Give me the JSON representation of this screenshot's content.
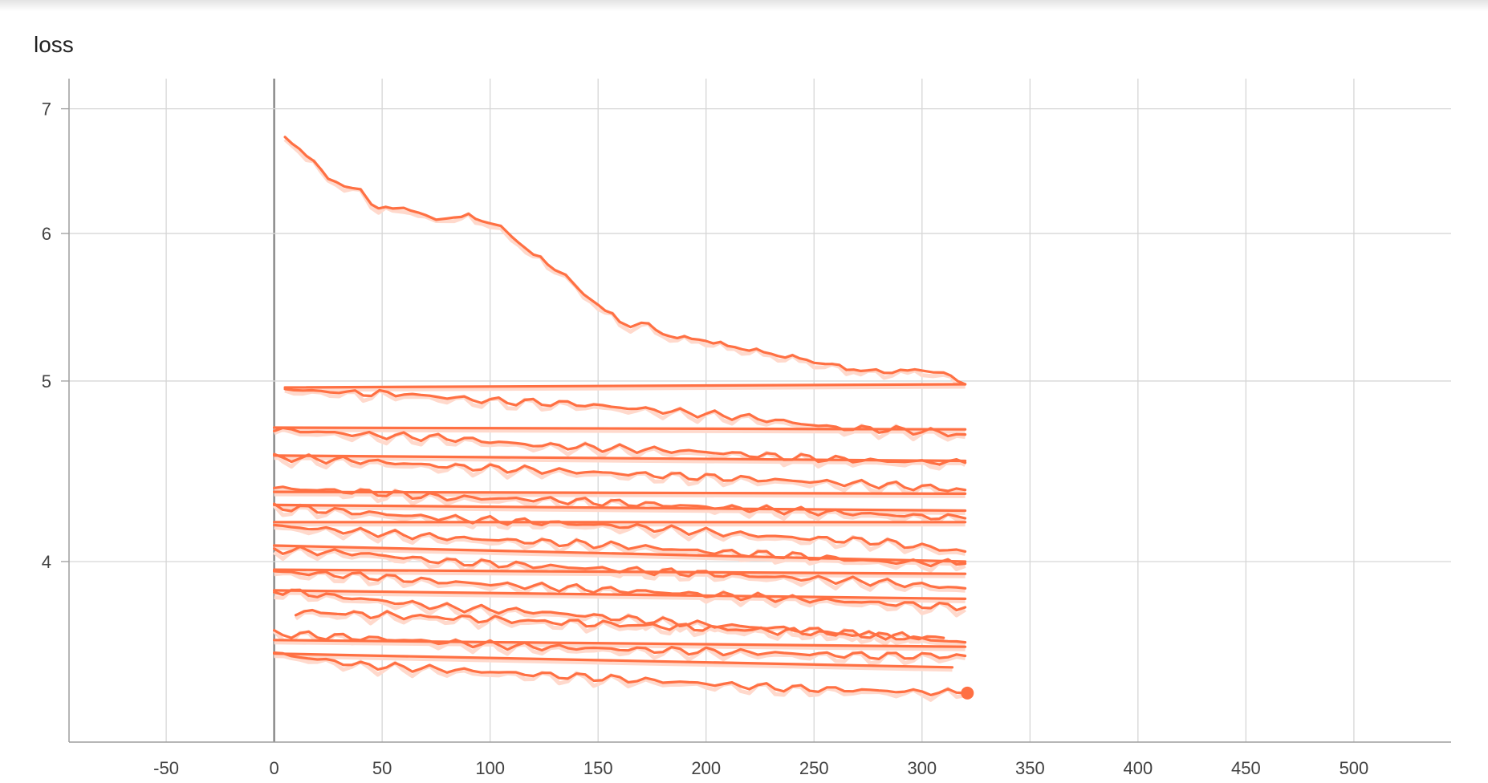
{
  "chart_data": {
    "type": "line",
    "title": "loss",
    "xlabel": "",
    "ylabel": "",
    "xlim": [
      -95,
      545
    ],
    "ylim": [
      3.2,
      7.18
    ],
    "y_scale": "log",
    "x_ticks": [
      -50,
      0,
      50,
      100,
      150,
      200,
      250,
      300,
      350,
      400,
      450,
      500
    ],
    "y_ticks": [
      4,
      5,
      6,
      7
    ],
    "grid": true,
    "legend": "none",
    "colors": {
      "line": "#ff7043",
      "line_raw": "#ffd9cc",
      "grid": "#d6d6d6",
      "axis": "#9e9e9e"
    },
    "series": [
      {
        "x": [
          5,
          15,
          25,
          40,
          45,
          55,
          60,
          70,
          75,
          80,
          90,
          100,
          105,
          110,
          120,
          130,
          135,
          140,
          150,
          160,
          165,
          170,
          180,
          190,
          200,
          210,
          220,
          230,
          240,
          250,
          255,
          265,
          275,
          290,
          300,
          305,
          310,
          320
        ],
        "y": [
          6.75,
          6.62,
          6.42,
          6.32,
          6.22,
          6.18,
          6.2,
          6.14,
          6.1,
          6.12,
          6.13,
          6.08,
          6.05,
          5.98,
          5.85,
          5.74,
          5.7,
          5.6,
          5.5,
          5.38,
          5.36,
          5.38,
          5.3,
          5.27,
          5.26,
          5.22,
          5.2,
          5.17,
          5.15,
          5.12,
          5.11,
          5.08,
          5.06,
          5.06,
          5.07,
          5.06,
          5.05,
          4.98
        ]
      },
      {
        "x": [
          5,
          30,
          60,
          100,
          140,
          180,
          220,
          260,
          300,
          320
        ],
        "y": [
          4.95,
          4.93,
          4.92,
          4.88,
          4.86,
          4.82,
          4.78,
          4.72,
          4.7,
          4.68
        ]
      },
      {
        "x": [
          5,
          320
        ],
        "y": [
          4.96,
          4.98
        ]
      },
      {
        "x": [
          0,
          40,
          80,
          120,
          160,
          200,
          240,
          280,
          320
        ],
        "y": [
          4.71,
          4.68,
          4.66,
          4.62,
          4.6,
          4.58,
          4.55,
          4.53,
          4.52
        ]
      },
      {
        "x": [
          0,
          320
        ],
        "y": [
          4.72,
          4.71
        ]
      },
      {
        "x": [
          0,
          40,
          80,
          120,
          160,
          200,
          240,
          280,
          320
        ],
        "y": [
          4.55,
          4.53,
          4.5,
          4.48,
          4.46,
          4.44,
          4.42,
          4.4,
          4.37
        ]
      },
      {
        "x": [
          0,
          320
        ],
        "y": [
          4.56,
          4.53
        ]
      },
      {
        "x": [
          0,
          40,
          80,
          120,
          160,
          200,
          240,
          280,
          320
        ],
        "y": [
          4.38,
          4.36,
          4.33,
          4.32,
          4.3,
          4.28,
          4.26,
          4.24,
          4.22
        ]
      },
      {
        "x": [
          0,
          320
        ],
        "y": [
          4.36,
          4.35
        ]
      },
      {
        "x": [
          0,
          40,
          80,
          120,
          160,
          200,
          240,
          280,
          320
        ],
        "y": [
          4.28,
          4.25,
          4.22,
          4.2,
          4.18,
          4.15,
          4.12,
          4.1,
          4.05
        ]
      },
      {
        "x": [
          0,
          320
        ],
        "y": [
          4.29,
          4.26
        ]
      },
      {
        "x": [
          0,
          40,
          80,
          120,
          160,
          200,
          240,
          280,
          320
        ],
        "y": [
          4.18,
          4.15,
          4.12,
          4.1,
          4.08,
          4.05,
          4.03,
          4.0,
          3.99
        ]
      },
      {
        "x": [
          0,
          320
        ],
        "y": [
          4.2,
          4.2
        ]
      },
      {
        "x": [
          0,
          40,
          80,
          120,
          160,
          200,
          240,
          280,
          320
        ],
        "y": [
          4.06,
          4.04,
          4.0,
          3.98,
          3.96,
          3.94,
          3.92,
          3.9,
          3.87
        ]
      },
      {
        "x": [
          0,
          320
        ],
        "y": [
          4.08,
          4.0
        ]
      },
      {
        "x": [
          0,
          40,
          80,
          120,
          160,
          200,
          240,
          280,
          320
        ],
        "y": [
          3.95,
          3.93,
          3.9,
          3.88,
          3.86,
          3.84,
          3.82,
          3.8,
          3.78
        ]
      },
      {
        "x": [
          0,
          320
        ],
        "y": [
          3.96,
          3.94
        ]
      },
      {
        "x": [
          0,
          40,
          80,
          120,
          160,
          200,
          240,
          280,
          320
        ],
        "y": [
          3.86,
          3.82,
          3.78,
          3.76,
          3.73,
          3.7,
          3.68,
          3.65,
          3.62
        ]
      },
      {
        "x": [
          0,
          320
        ],
        "y": [
          3.86,
          3.82
        ]
      },
      {
        "x": [
          10,
          60,
          110,
          160,
          210,
          260,
          310
        ],
        "y": [
          3.76,
          3.74,
          3.72,
          3.7,
          3.68,
          3.66,
          3.64
        ]
      },
      {
        "x": [
          0,
          40,
          80,
          120,
          160,
          200,
          240,
          280,
          320
        ],
        "y": [
          3.66,
          3.64,
          3.62,
          3.6,
          3.59,
          3.58,
          3.57,
          3.56,
          3.56
        ]
      },
      {
        "x": [
          0,
          320
        ],
        "y": [
          3.63,
          3.6
        ]
      },
      {
        "x": [
          0,
          40,
          80,
          120,
          160,
          200,
          240,
          280,
          320
        ],
        "y": [
          3.57,
          3.52,
          3.5,
          3.48,
          3.46,
          3.44,
          3.42,
          3.41,
          3.4
        ]
      },
      {
        "x": [
          0,
          314
        ],
        "y": [
          3.57,
          3.51
        ]
      }
    ],
    "highlight_point": {
      "x": 321,
      "y": 3.4
    }
  }
}
